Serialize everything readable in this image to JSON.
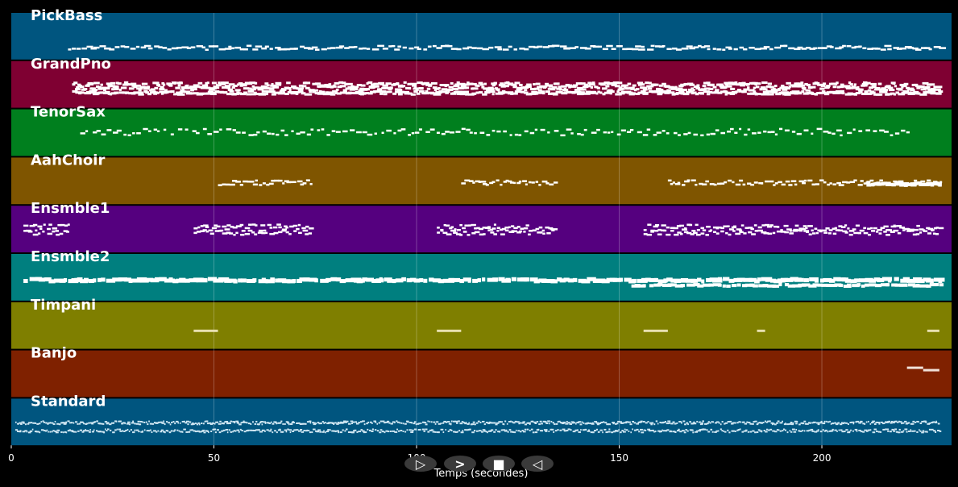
{
  "timeline": {
    "x_axis": {
      "label": "Temps (secondes)",
      "range": [
        0,
        232
      ],
      "ticks": [
        0,
        50,
        100,
        150,
        200
      ]
    },
    "tracks": [
      {
        "name": "PickBass",
        "color": "#00557f"
      },
      {
        "name": "GrandPno",
        "color": "#7f0032"
      },
      {
        "name": "TenorSax",
        "color": "#007f1e"
      },
      {
        "name": "AahChoir",
        "color": "#7f5500"
      },
      {
        "name": "Ensmble1",
        "color": "#55007f"
      },
      {
        "name": "Ensmble2",
        "color": "#007f7f"
      },
      {
        "name": "Timpani",
        "color": "#7f7f00"
      },
      {
        "name": "Banjo",
        "color": "#7f2100"
      },
      {
        "name": "Standard",
        "color": "#00557f"
      }
    ]
  },
  "controls": [
    {
      "name": "play-icon",
      "glyph": "▷"
    },
    {
      "name": "fast-forward-icon",
      "glyph": ">"
    },
    {
      "name": "stop-icon",
      "glyph": "■"
    },
    {
      "name": "rewind-icon",
      "glyph": "◁"
    }
  ]
}
